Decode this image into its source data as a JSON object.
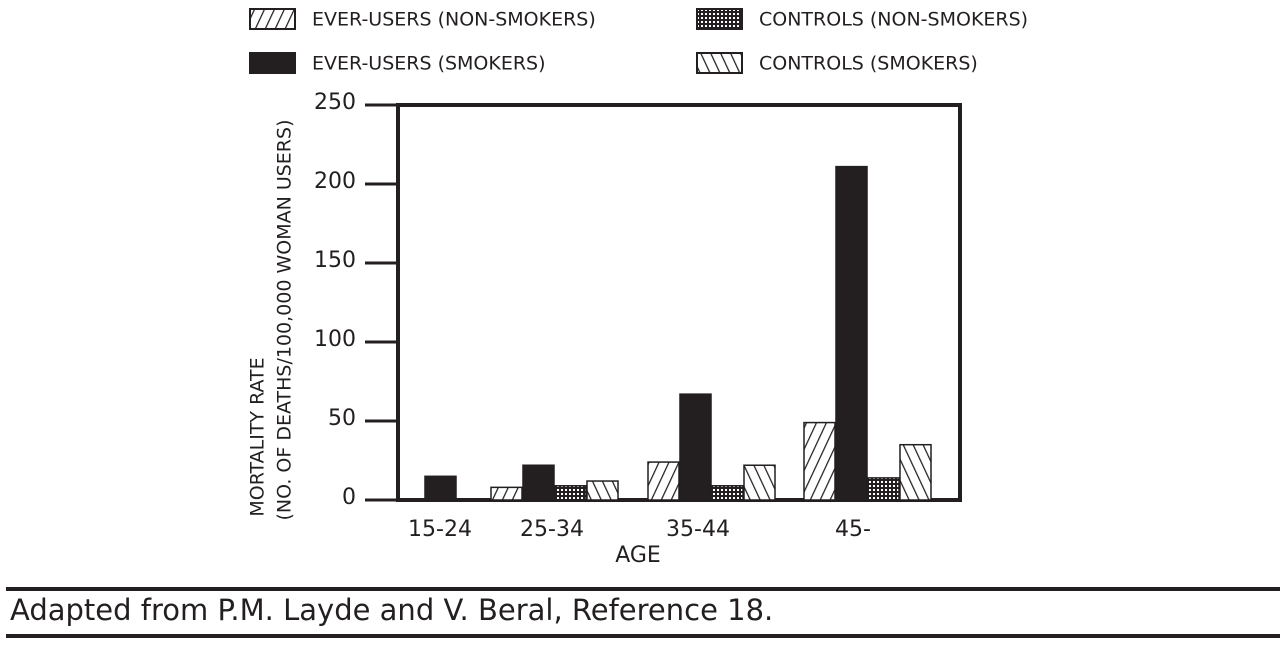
{
  "chart_data": {
    "type": "bar",
    "categories": [
      "15-24",
      "25-34",
      "35-44",
      "45-"
    ],
    "series": [
      {
        "name": "EVER-USERS (NON-SMOKERS)",
        "color": "#231f20",
        "pattern": "hatch-forward",
        "values": [
          0,
          8,
          24,
          49
        ]
      },
      {
        "name": "EVER-USERS (SMOKERS)",
        "color": "#231f20",
        "pattern": "solid",
        "values": [
          15,
          22,
          67,
          211
        ]
      },
      {
        "name": "CONTROLS (NON-SMOKERS)",
        "color": "#231f20",
        "pattern": "dots",
        "values": [
          0,
          9,
          9,
          14
        ]
      },
      {
        "name": "CONTROLS (SMOKERS)",
        "color": "#231f20",
        "pattern": "hatch-back",
        "values": [
          0,
          12,
          22,
          35
        ]
      }
    ],
    "ylabel": [
      "MORTALITY RATE",
      "(NO. OF DEATHS/100,000 WOMAN USERS)"
    ],
    "xlabel": "AGE",
    "ylim": [
      0,
      250
    ],
    "yticks": [
      0,
      50,
      100,
      150,
      200,
      250
    ],
    "caption": "Adapted from P.M. Layde and V. Beral, Reference 18."
  }
}
